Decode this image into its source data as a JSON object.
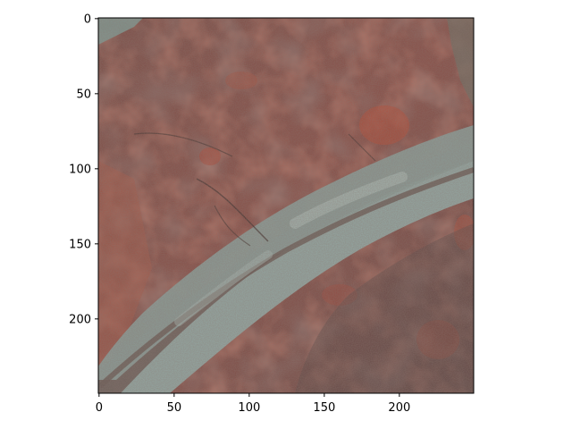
{
  "figure": {
    "kind": "image-plot",
    "image_description_free": true,
    "x_axis": {
      "ticks": [
        {
          "value": 0,
          "label": "0"
        },
        {
          "value": 50,
          "label": "50"
        },
        {
          "value": 100,
          "label": "100"
        },
        {
          "value": 150,
          "label": "150"
        },
        {
          "value": 200,
          "label": "200"
        }
      ],
      "range": [
        0,
        250
      ]
    },
    "y_axis": {
      "ticks": [
        {
          "value": 0,
          "label": "0"
        },
        {
          "value": 50,
          "label": "50"
        },
        {
          "value": 100,
          "label": "100"
        },
        {
          "value": 150,
          "label": "150"
        },
        {
          "value": 200,
          "label": "200"
        }
      ],
      "range": [
        0,
        250
      ],
      "inverted": true
    },
    "colors": {
      "terrain_base": "#8a4e45",
      "terrain_dark": "#5e4a45",
      "terrain_red": "#b0503e",
      "channel_gray": "#8fa39f",
      "channel_light": "#a7b8b3",
      "channel_band": "#6d6a64",
      "axis": "#000000"
    }
  }
}
